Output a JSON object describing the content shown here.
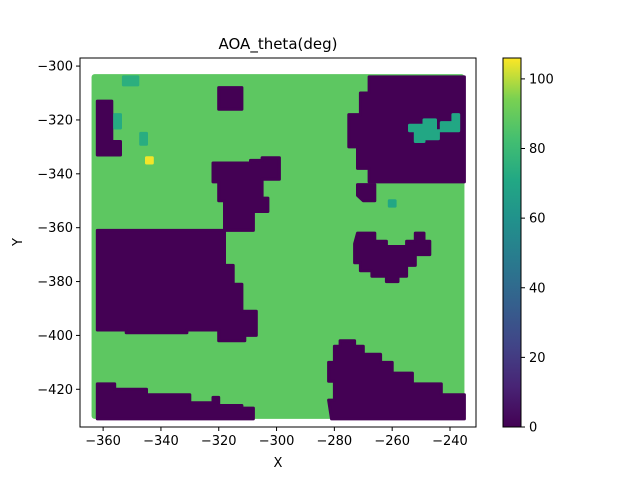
{
  "chart_data": {
    "type": "heatmap",
    "title": "AOA_theta(deg)",
    "xlabel": "X",
    "ylabel": "Y",
    "xlim": [
      -368,
      -231
    ],
    "ylim": [
      -434,
      -297
    ],
    "xticks": [
      -360,
      -340,
      -320,
      -300,
      -280,
      -260,
      -240
    ],
    "xtick_labels": [
      "−360",
      "−340",
      "−320",
      "−300",
      "−280",
      "−260",
      "−240"
    ],
    "yticks": [
      -300,
      -320,
      -340,
      -360,
      -380,
      -400,
      -420
    ],
    "ytick_labels": [
      "−300",
      "−320",
      "−340",
      "−360",
      "−380",
      "−400",
      "−420"
    ],
    "colorbar": {
      "colormap": "viridis",
      "range": [
        0,
        106
      ],
      "ticks": [
        0,
        20,
        40,
        60,
        80,
        100
      ],
      "tick_labels": [
        "0",
        "20",
        "40",
        "60",
        "80",
        "100"
      ]
    },
    "background_value": 88,
    "regions": [
      {
        "value": 0,
        "polygon": [
          [
            -362,
            -313
          ],
          [
            -357,
            -313
          ],
          [
            -357,
            -328
          ],
          [
            -354,
            -328
          ],
          [
            -354,
            -333
          ],
          [
            -362,
            -333
          ]
        ]
      },
      {
        "value": 0,
        "polygon": [
          [
            -320,
            -308
          ],
          [
            -312,
            -308
          ],
          [
            -312,
            -316
          ],
          [
            -320,
            -316
          ]
        ]
      },
      {
        "value": 0,
        "polygon": [
          [
            -268,
            -304
          ],
          [
            -235,
            -304
          ],
          [
            -235,
            -343
          ],
          [
            -268,
            -343
          ],
          [
            -268,
            -338
          ],
          [
            -272,
            -338
          ],
          [
            -272,
            -330
          ],
          [
            -275,
            -330
          ],
          [
            -275,
            -318
          ],
          [
            -271,
            -318
          ],
          [
            -271,
            -310
          ],
          [
            -268,
            -310
          ]
        ]
      },
      {
        "value": 0,
        "polygon": [
          [
            -362,
            -361
          ],
          [
            -308,
            -361
          ],
          [
            -308,
            -354
          ],
          [
            -303,
            -354
          ],
          [
            -303,
            -349
          ],
          [
            -305,
            -349
          ],
          [
            -305,
            -342
          ],
          [
            -299,
            -342
          ],
          [
            -299,
            -334
          ],
          [
            -305,
            -334
          ],
          [
            -305,
            -335
          ],
          [
            -309,
            -335
          ],
          [
            -309,
            -336
          ],
          [
            -322,
            -336
          ],
          [
            -322,
            -343
          ],
          [
            -320,
            -343
          ],
          [
            -320,
            -350
          ],
          [
            -318,
            -350
          ],
          [
            -318,
            -361
          ],
          [
            -318,
            -361
          ],
          [
            -318,
            -374
          ],
          [
            -315,
            -374
          ],
          [
            -315,
            -381
          ],
          [
            -312,
            -381
          ],
          [
            -312,
            -391
          ],
          [
            -307,
            -391
          ],
          [
            -307,
            -400
          ],
          [
            -311,
            -400
          ],
          [
            -311,
            -402
          ],
          [
            -320,
            -402
          ],
          [
            -320,
            -398
          ],
          [
            -331,
            -398
          ],
          [
            -331,
            -399
          ],
          [
            -352,
            -399
          ],
          [
            -352,
            -398
          ],
          [
            -362,
            -398
          ]
        ]
      },
      {
        "value": 0,
        "polygon": [
          [
            -362,
            -418
          ],
          [
            -356,
            -418
          ],
          [
            -356,
            -420
          ],
          [
            -345,
            -420
          ],
          [
            -345,
            -422
          ],
          [
            -330,
            -422
          ],
          [
            -330,
            -425
          ],
          [
            -322,
            -425
          ],
          [
            -322,
            -423
          ],
          [
            -320,
            -423
          ],
          [
            -320,
            -426
          ],
          [
            -312,
            -426
          ],
          [
            -312,
            -427
          ],
          [
            -308,
            -427
          ],
          [
            -308,
            -431
          ],
          [
            -362,
            -431
          ]
        ]
      },
      {
        "value": 0,
        "polygon": [
          [
            -281,
            -431
          ],
          [
            -235,
            -431
          ],
          [
            -235,
            -422
          ],
          [
            -243,
            -422
          ],
          [
            -243,
            -418
          ],
          [
            -253,
            -418
          ],
          [
            -253,
            -414
          ],
          [
            -260,
            -414
          ],
          [
            -260,
            -410
          ],
          [
            -264,
            -410
          ],
          [
            -264,
            -407
          ],
          [
            -270,
            -407
          ],
          [
            -270,
            -404
          ],
          [
            -273,
            -404
          ],
          [
            -273,
            -402
          ],
          [
            -278,
            -402
          ],
          [
            -278,
            -404
          ],
          [
            -280,
            -404
          ],
          [
            -280,
            -410
          ],
          [
            -282,
            -410
          ],
          [
            -282,
            -417
          ],
          [
            -280,
            -417
          ],
          [
            -280,
            -424
          ],
          [
            -282,
            -424
          ]
        ]
      },
      {
        "value": 0,
        "polygon": [
          [
            -272,
            -362
          ],
          [
            -266,
            -362
          ],
          [
            -266,
            -365
          ],
          [
            -262,
            -365
          ],
          [
            -262,
            -367
          ],
          [
            -255,
            -367
          ],
          [
            -255,
            -365
          ],
          [
            -252,
            -365
          ],
          [
            -252,
            -362
          ],
          [
            -249,
            -362
          ],
          [
            -249,
            -365
          ],
          [
            -247,
            -365
          ],
          [
            -247,
            -370
          ],
          [
            -252,
            -370
          ],
          [
            -252,
            -374
          ],
          [
            -255,
            -374
          ],
          [
            -255,
            -378
          ],
          [
            -258,
            -378
          ],
          [
            -258,
            -380
          ],
          [
            -262,
            -380
          ],
          [
            -262,
            -378
          ],
          [
            -267,
            -378
          ],
          [
            -267,
            -376
          ],
          [
            -271,
            -376
          ],
          [
            -271,
            -373
          ],
          [
            -273,
            -373
          ],
          [
            -273,
            -366
          ]
        ]
      },
      {
        "value": 0,
        "polygon": [
          [
            -272,
            -344
          ],
          [
            -266,
            -344
          ],
          [
            -266,
            -350
          ],
          [
            -270,
            -350
          ],
          [
            -272,
            -348
          ]
        ]
      },
      {
        "value": 70,
        "polygon": [
          [
            -254,
            -322
          ],
          [
            -249,
            -322
          ],
          [
            -249,
            -320
          ],
          [
            -245,
            -320
          ],
          [
            -245,
            -324
          ],
          [
            -243,
            -324
          ],
          [
            -243,
            -321
          ],
          [
            -239,
            -321
          ],
          [
            -239,
            -318
          ],
          [
            -237,
            -318
          ],
          [
            -237,
            -324
          ],
          [
            -244,
            -324
          ],
          [
            -244,
            -327
          ],
          [
            -249,
            -327
          ],
          [
            -249,
            -328
          ],
          [
            -252,
            -328
          ],
          [
            -252,
            -324
          ],
          [
            -254,
            -324
          ]
        ]
      },
      {
        "value": 72,
        "polygon": [
          [
            -356,
            -318
          ],
          [
            -354,
            -318
          ],
          [
            -354,
            -323
          ],
          [
            -356,
            -323
          ]
        ]
      },
      {
        "value": 74,
        "polygon": [
          [
            -353,
            -304
          ],
          [
            -348,
            -304
          ],
          [
            -348,
            -307
          ],
          [
            -353,
            -307
          ]
        ]
      },
      {
        "value": 73,
        "polygon": [
          [
            -347,
            -325
          ],
          [
            -345,
            -325
          ],
          [
            -345,
            -329
          ],
          [
            -347,
            -329
          ]
        ]
      },
      {
        "value": 70,
        "polygon": [
          [
            -261,
            -350
          ],
          [
            -259,
            -350
          ],
          [
            -259,
            -352
          ],
          [
            -261,
            -352
          ]
        ]
      },
      {
        "value": 105,
        "polygon": [
          [
            -345,
            -334
          ],
          [
            -343,
            -334
          ],
          [
            -343,
            -336
          ],
          [
            -345,
            -336
          ]
        ]
      }
    ]
  }
}
